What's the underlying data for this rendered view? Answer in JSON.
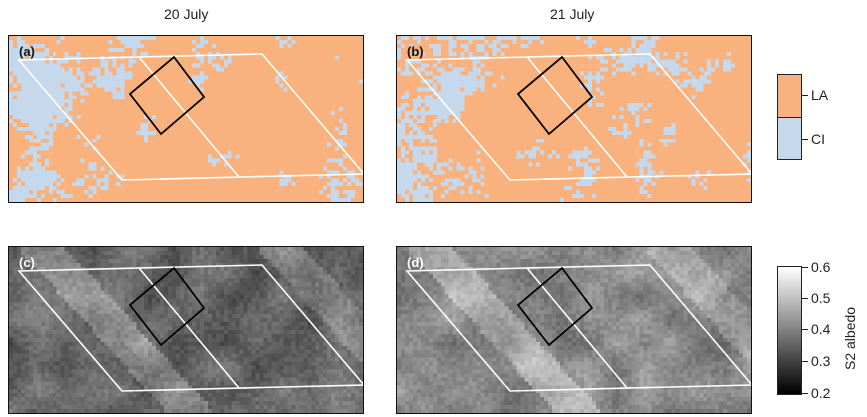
{
  "columns": [
    "20 July",
    "21 July"
  ],
  "panels": [
    {
      "label": "(a)",
      "type": "classification",
      "date": "20 July"
    },
    {
      "label": "(b)",
      "type": "classification",
      "date": "21 July"
    },
    {
      "label": "(c)",
      "type": "albedo",
      "date": "20 July"
    },
    {
      "label": "(d)",
      "type": "albedo",
      "date": "21 July"
    }
  ],
  "legend": {
    "classes": [
      {
        "name": "LA",
        "color": "#f9b27d"
      },
      {
        "name": "CI",
        "color": "#c5d8ec"
      }
    ]
  },
  "colorbar": {
    "title": "S2 albedo",
    "ticks": [
      "0.6",
      "0.5",
      "0.4",
      "0.3",
      "0.2"
    ],
    "range": [
      0.2,
      0.6
    ]
  }
}
